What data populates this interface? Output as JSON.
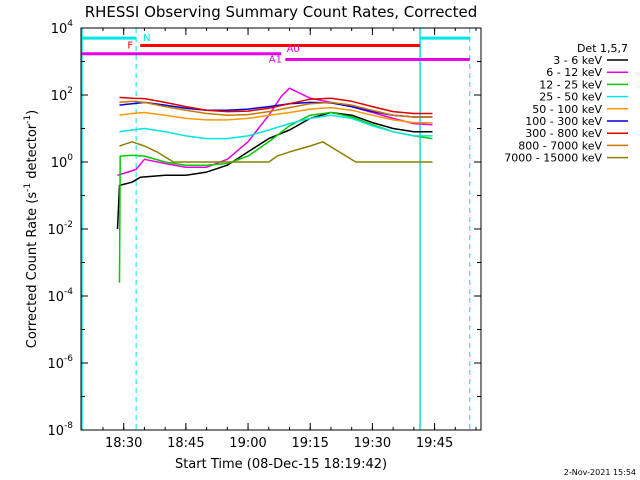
{
  "chart_data": {
    "type": "line",
    "title": "RHESSI Observing Summary Count Rates, Corrected",
    "xlabel": "Start Time (08-Dec-15 18:19:42)",
    "ylabel": "Corrected Count Rate (s⁻¹ detector⁻¹)",
    "ylabel_main": "Corrected Count Rate (s",
    "ylabel_sup1": "-1",
    "ylabel_mid": " detector",
    "ylabel_sup2": "-1",
    "ylabel_end": ")",
    "yscale": "log",
    "ylim": [
      1e-08,
      10000.0
    ],
    "xlim": [
      "18:19:42",
      "19:56:12"
    ],
    "x_ticks": [
      "18:30",
      "18:45",
      "19:00",
      "19:15",
      "19:30",
      "19:45"
    ],
    "y_ticks": [
      {
        "exp": -8,
        "label": "-8"
      },
      {
        "exp": -6,
        "label": "-6"
      },
      {
        "exp": -4,
        "label": "-4"
      },
      {
        "exp": -2,
        "label": "-2"
      },
      {
        "exp": 0,
        "label": "0"
      },
      {
        "exp": 2,
        "label": "2"
      },
      {
        "exp": 4,
        "label": "4"
      }
    ],
    "y_tick_base": "10",
    "legend_title": "Det 1,5,7",
    "legend_position": "right",
    "footer": "2-Nov-2021 15:54",
    "grid": false,
    "time_markers": [
      "18:33:00",
      "19:41:30",
      "19:53:30"
    ],
    "intervals": [
      {
        "label": "N",
        "color": "#00e5e5",
        "start": "18:19:42",
        "end": "18:33:00",
        "level": 5000
      },
      {
        "label": "F",
        "color": "#ff0000",
        "start": "18:34:00",
        "end": "19:41:30",
        "level": 3000
      },
      {
        "label": "A0",
        "color": "#e600e6",
        "start": "18:19:42",
        "end": "19:08:00",
        "level": 1700
      },
      {
        "label": "A1",
        "color": "#e600e6",
        "start": "19:09:00",
        "end": "19:53:30",
        "level": 1150
      },
      {
        "label": "",
        "color": "#00e5e5",
        "start": "19:41:30",
        "end": "19:53:30",
        "level": 5000
      }
    ],
    "series": [
      {
        "name": "3 - 6 keV",
        "color": "#000000",
        "points": [
          [
            "18:28:30",
            0.01
          ],
          [
            "18:29:00",
            0.2
          ],
          [
            "18:32:00",
            0.25
          ],
          [
            "18:34:00",
            0.35
          ],
          [
            "18:40:00",
            0.4
          ],
          [
            "18:45:00",
            0.4
          ],
          [
            "18:50:00",
            0.5
          ],
          [
            "18:55:00",
            0.8
          ],
          [
            "19:00:00",
            2
          ],
          [
            "19:05:00",
            5
          ],
          [
            "19:10:00",
            9
          ],
          [
            "19:15:00",
            20
          ],
          [
            "19:20:00",
            30
          ],
          [
            "19:25:00",
            25
          ],
          [
            "19:30:00",
            15
          ],
          [
            "19:35:00",
            10
          ],
          [
            "19:40:00",
            8
          ],
          [
            "19:44:30",
            8
          ]
        ]
      },
      {
        "name": "6 - 12 keV",
        "color": "#e600e6",
        "points": [
          [
            "18:28:30",
            0.4
          ],
          [
            "18:31:00",
            0.5
          ],
          [
            "18:33:00",
            0.6
          ],
          [
            "18:35:00",
            1.2
          ],
          [
            "18:40:00",
            0.9
          ],
          [
            "18:45:00",
            0.7
          ],
          [
            "18:50:00",
            0.7
          ],
          [
            "18:55:00",
            1.2
          ],
          [
            "19:00:00",
            4
          ],
          [
            "19:05:00",
            25
          ],
          [
            "19:08:00",
            90
          ],
          [
            "19:10:00",
            160
          ],
          [
            "19:12:00",
            120
          ],
          [
            "19:15:00",
            80
          ],
          [
            "19:20:00",
            60
          ],
          [
            "19:25:00",
            45
          ],
          [
            "19:30:00",
            30
          ],
          [
            "19:35:00",
            20
          ],
          [
            "19:40:00",
            14
          ],
          [
            "19:44:30",
            13
          ]
        ]
      },
      {
        "name": "12 - 25 keV",
        "color": "#00cc00",
        "points": [
          [
            "18:29:00",
            0.00025
          ],
          [
            "18:29:10",
            1.5
          ],
          [
            "18:32:00",
            1.6
          ],
          [
            "18:35:00",
            1.5
          ],
          [
            "18:40:00",
            1.0
          ],
          [
            "18:45:00",
            0.8
          ],
          [
            "18:50:00",
            0.8
          ],
          [
            "18:55:00",
            0.9
          ],
          [
            "19:00:00",
            1.5
          ],
          [
            "19:05:00",
            4
          ],
          [
            "19:10:00",
            12
          ],
          [
            "19:15:00",
            25
          ],
          [
            "19:20:00",
            30
          ],
          [
            "19:25:00",
            22
          ],
          [
            "19:30:00",
            13
          ],
          [
            "19:35:00",
            8
          ],
          [
            "19:40:00",
            6
          ],
          [
            "19:44:30",
            5
          ]
        ]
      },
      {
        "name": "25 - 50 keV",
        "color": "#00e5e5",
        "points": [
          [
            "18:29:00",
            8
          ],
          [
            "18:32:00",
            9
          ],
          [
            "18:35:00",
            10
          ],
          [
            "18:40:00",
            8
          ],
          [
            "18:45:00",
            6
          ],
          [
            "18:50:00",
            5
          ],
          [
            "18:55:00",
            5
          ],
          [
            "19:00:00",
            6
          ],
          [
            "19:05:00",
            9
          ],
          [
            "19:10:00",
            14
          ],
          [
            "19:15:00",
            20
          ],
          [
            "19:20:00",
            25
          ],
          [
            "19:25:00",
            20
          ],
          [
            "19:30:00",
            12
          ],
          [
            "19:35:00",
            8
          ],
          [
            "19:40:00",
            6
          ],
          [
            "19:44:30",
            6
          ]
        ]
      },
      {
        "name": "50 - 100 keV",
        "color": "#ff9900",
        "points": [
          [
            "18:29:00",
            25
          ],
          [
            "18:32:00",
            28
          ],
          [
            "18:35:00",
            30
          ],
          [
            "18:40:00",
            25
          ],
          [
            "18:45:00",
            20
          ],
          [
            "18:50:00",
            18
          ],
          [
            "18:55:00",
            18
          ],
          [
            "19:00:00",
            20
          ],
          [
            "19:05:00",
            25
          ],
          [
            "19:10:00",
            30
          ],
          [
            "19:15:00",
            38
          ],
          [
            "19:20:00",
            42
          ],
          [
            "19:25:00",
            35
          ],
          [
            "19:30:00",
            25
          ],
          [
            "19:35:00",
            18
          ],
          [
            "19:40:00",
            15
          ],
          [
            "19:44:30",
            15
          ]
        ]
      },
      {
        "name": "100 - 300 keV",
        "color": "#0000dd",
        "points": [
          [
            "18:29:00",
            50
          ],
          [
            "18:32:00",
            55
          ],
          [
            "18:35:00",
            60
          ],
          [
            "18:40:00",
            50
          ],
          [
            "18:45:00",
            40
          ],
          [
            "18:50:00",
            35
          ],
          [
            "18:55:00",
            35
          ],
          [
            "19:00:00",
            38
          ],
          [
            "19:05:00",
            45
          ],
          [
            "19:10:00",
            55
          ],
          [
            "19:15:00",
            60
          ],
          [
            "19:20:00",
            58
          ],
          [
            "19:25:00",
            45
          ],
          [
            "19:30:00",
            32
          ],
          [
            "19:35:00",
            25
          ],
          [
            "19:40:00",
            22
          ],
          [
            "19:44:30",
            22
          ]
        ]
      },
      {
        "name": "300 - 800 keV",
        "color": "#dd0000",
        "points": [
          [
            "18:29:00",
            85
          ],
          [
            "18:32:00",
            80
          ],
          [
            "18:35:00",
            78
          ],
          [
            "18:40:00",
            60
          ],
          [
            "18:45:00",
            45
          ],
          [
            "18:50:00",
            35
          ],
          [
            "18:55:00",
            32
          ],
          [
            "19:00:00",
            33
          ],
          [
            "19:05:00",
            40
          ],
          [
            "19:10:00",
            55
          ],
          [
            "19:15:00",
            75
          ],
          [
            "19:20:00",
            80
          ],
          [
            "19:25:00",
            65
          ],
          [
            "19:30:00",
            45
          ],
          [
            "19:35:00",
            32
          ],
          [
            "19:40:00",
            28
          ],
          [
            "19:44:30",
            28
          ]
        ]
      },
      {
        "name": "800 - 7000 keV",
        "color": "#c87800",
        "points": [
          [
            "18:29:00",
            60
          ],
          [
            "18:32:00",
            65
          ],
          [
            "18:35:00",
            60
          ],
          [
            "18:40:00",
            45
          ],
          [
            "18:45:00",
            35
          ],
          [
            "18:50:00",
            28
          ],
          [
            "18:55:00",
            25
          ],
          [
            "19:00:00",
            26
          ],
          [
            "19:05:00",
            32
          ],
          [
            "19:10:00",
            42
          ],
          [
            "19:15:00",
            55
          ],
          [
            "19:20:00",
            60
          ],
          [
            "19:25:00",
            50
          ],
          [
            "19:30:00",
            35
          ],
          [
            "19:35:00",
            25
          ],
          [
            "19:40:00",
            22
          ],
          [
            "19:44:30",
            22
          ]
        ]
      },
      {
        "name": "7000 - 15000 keV",
        "color": "#8b8000",
        "points": [
          [
            "18:29:00",
            3
          ],
          [
            "18:32:00",
            4
          ],
          [
            "18:35:00",
            3
          ],
          [
            "18:38:00",
            2
          ],
          [
            "18:42:00",
            1
          ],
          [
            "18:45:00",
            1
          ],
          [
            "18:50:00",
            1
          ],
          [
            "18:55:00",
            1
          ],
          [
            "19:00:00",
            1
          ],
          [
            "19:05:00",
            1
          ],
          [
            "19:07:00",
            1.5
          ],
          [
            "19:10:00",
            2
          ],
          [
            "19:15:00",
            3
          ],
          [
            "19:18:00",
            4
          ],
          [
            "19:22:00",
            2
          ],
          [
            "19:26:00",
            1
          ],
          [
            "19:30:00",
            1
          ],
          [
            "19:35:00",
            1
          ],
          [
            "19:44:30",
            1
          ]
        ]
      }
    ]
  }
}
